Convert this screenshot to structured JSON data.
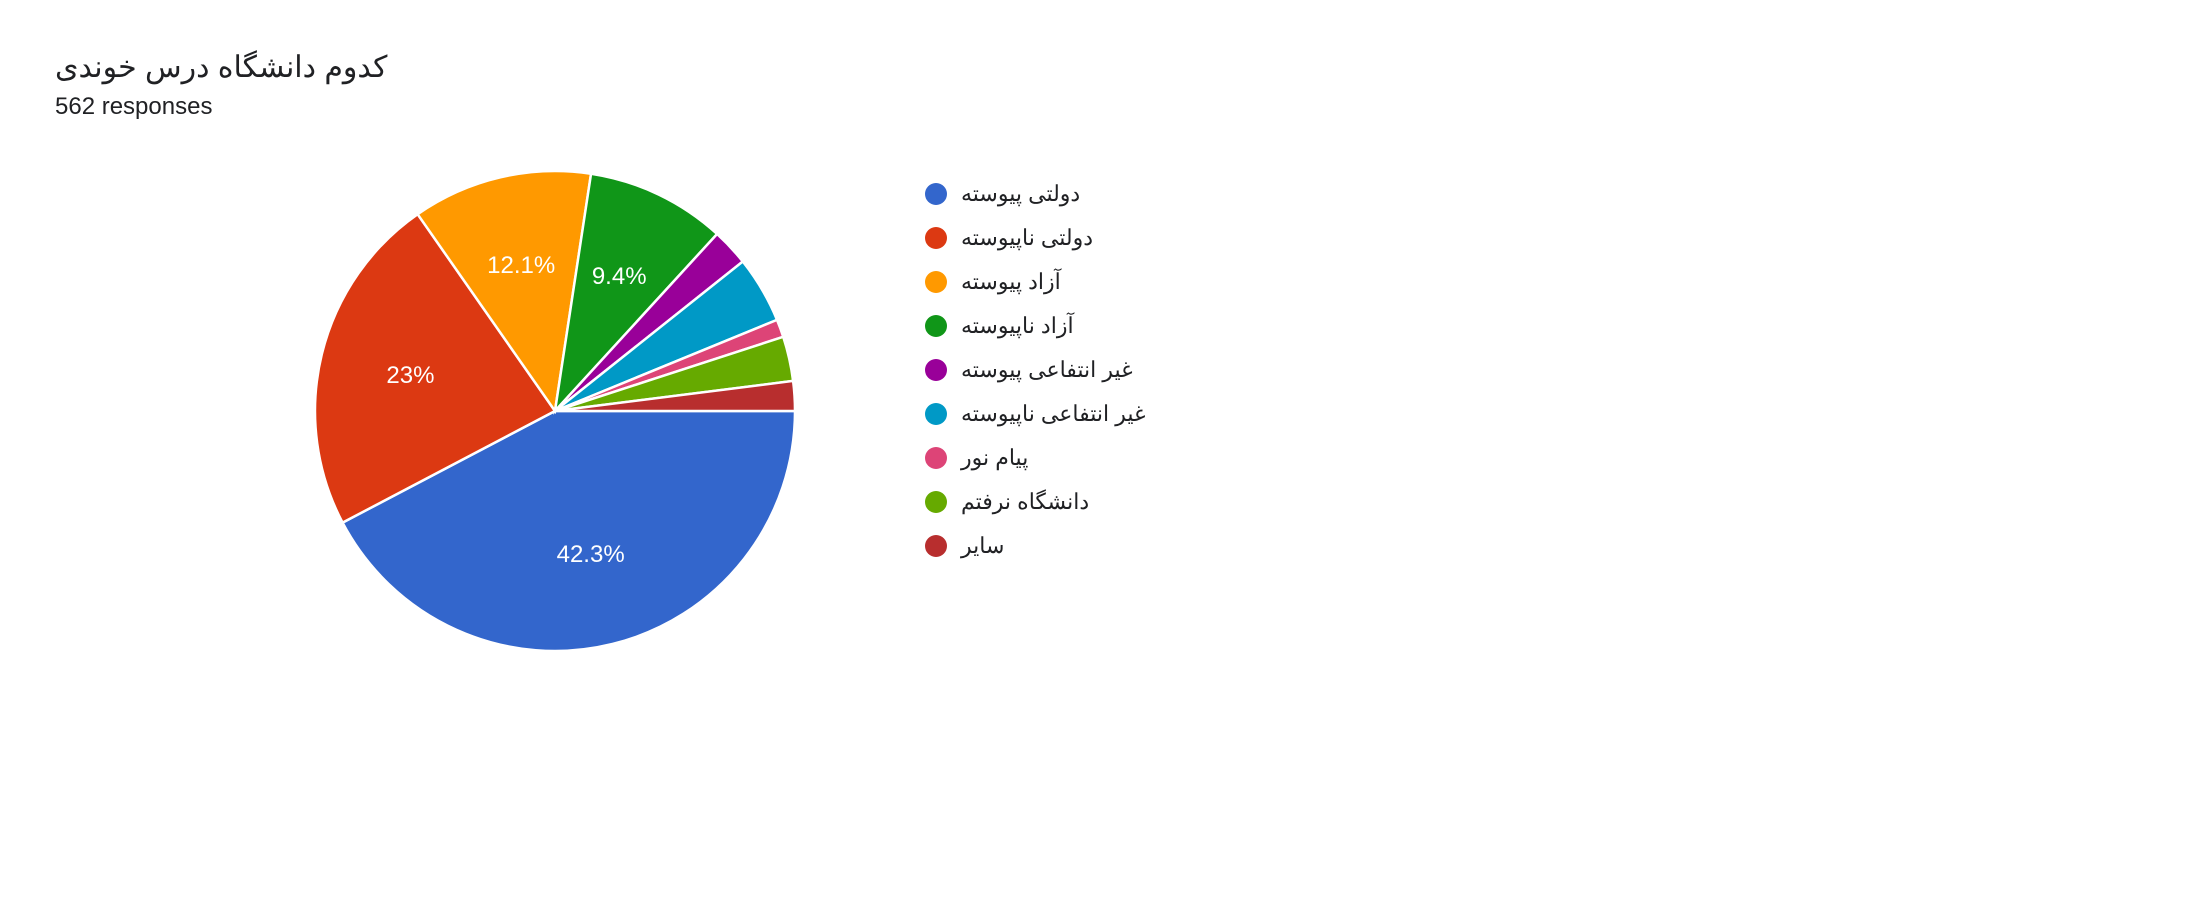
{
  "header": {
    "title": "کدوم دانشگاه درس خوندی",
    "subtitle": "562 responses"
  },
  "chart": {
    "type": "pie",
    "background_color": "#ffffff",
    "label_fontsize": 24,
    "label_color": "#ffffff",
    "legend_fontsize": 22,
    "start_angle_deg": 0,
    "slices": [
      {
        "label": "دولتی پیوسته",
        "value": 42.3,
        "color": "#3366cc",
        "show_pct": true,
        "pct_text": "42.3%"
      },
      {
        "label": "دولتی ناپیوسته",
        "value": 23.0,
        "color": "#dc3912",
        "show_pct": true,
        "pct_text": "23%"
      },
      {
        "label": "آزاد پیوسته",
        "value": 12.1,
        "color": "#ff9900",
        "show_pct": true,
        "pct_text": "12.1%"
      },
      {
        "label": "آزاد ناپیوسته",
        "value": 9.4,
        "color": "#109618",
        "show_pct": true,
        "pct_text": "9.4%"
      },
      {
        "label": "غیر انتفاعی پیوسته",
        "value": 2.5,
        "color": "#990099",
        "show_pct": false,
        "pct_text": ""
      },
      {
        "label": "غیر انتفاعی ناپیوسته",
        "value": 4.5,
        "color": "#0099c6",
        "show_pct": false,
        "pct_text": ""
      },
      {
        "label": "پیام نور",
        "value": 1.2,
        "color": "#dd4477",
        "show_pct": false,
        "pct_text": ""
      },
      {
        "label": "دانشگاه نرفتم",
        "value": 3.0,
        "color": "#66aa00",
        "show_pct": false,
        "pct_text": ""
      },
      {
        "label": "سایر",
        "value": 2.0,
        "color": "#b82e2e",
        "show_pct": false,
        "pct_text": ""
      }
    ]
  }
}
